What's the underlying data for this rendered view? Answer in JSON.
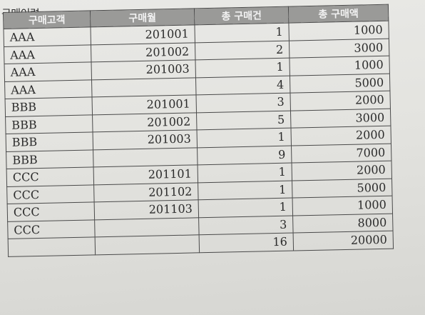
{
  "caption": "구매이력",
  "table": {
    "headers": [
      "구매고객",
      "구매월",
      "총 구매건",
      "총 구매액"
    ],
    "rows": [
      [
        "AAA",
        "201001",
        "1",
        "1000"
      ],
      [
        "AAA",
        "201002",
        "2",
        "3000"
      ],
      [
        "AAA",
        "201003",
        "1",
        "1000"
      ],
      [
        "AAA",
        "",
        "4",
        "5000"
      ],
      [
        "BBB",
        "201001",
        "3",
        "2000"
      ],
      [
        "BBB",
        "201002",
        "5",
        "3000"
      ],
      [
        "BBB",
        "201003",
        "1",
        "2000"
      ],
      [
        "BBB",
        "",
        "9",
        "7000"
      ],
      [
        "CCC",
        "201101",
        "1",
        "2000"
      ],
      [
        "CCC",
        "201102",
        "1",
        "5000"
      ],
      [
        "CCC",
        "201103",
        "1",
        "1000"
      ],
      [
        "CCC",
        "",
        "3",
        "8000"
      ],
      [
        "",
        "",
        "16",
        "20000"
      ]
    ]
  }
}
